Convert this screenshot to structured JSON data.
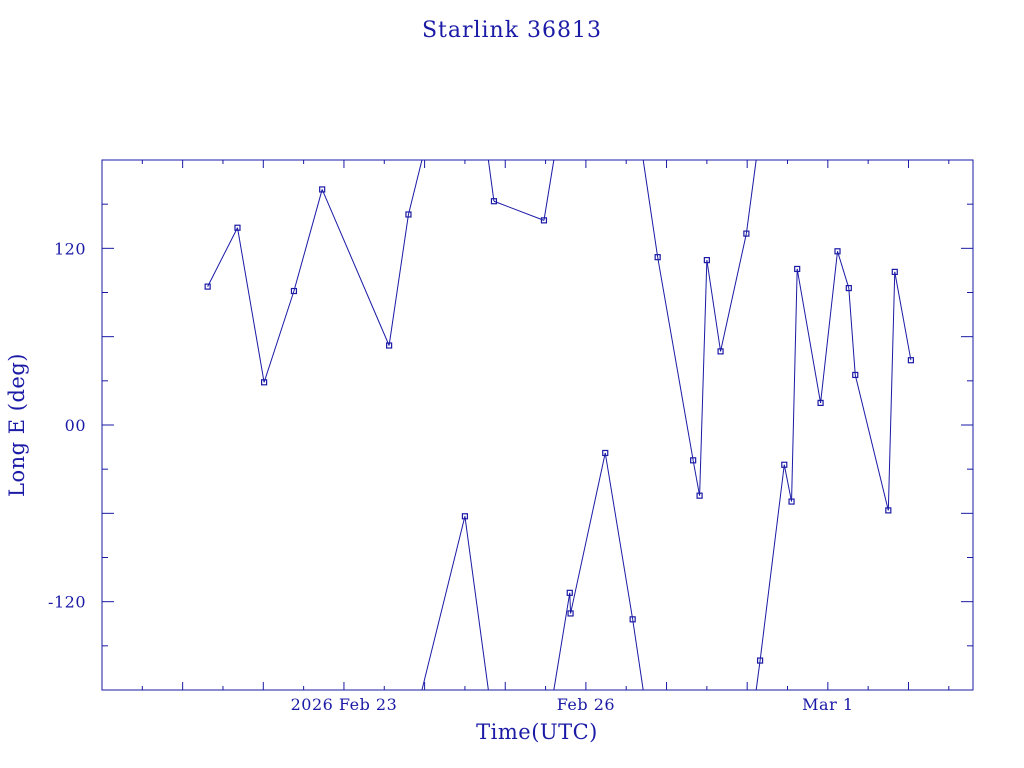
{
  "chart_data": {
    "type": "line",
    "title": "Starlink 36813",
    "xlabel": "Time(UTC)",
    "ylabel": "Long E (deg)",
    "x_ticks": [
      {
        "label": "2026 Feb 23",
        "value": 3
      },
      {
        "label": "Feb 26",
        "value": 6
      },
      {
        "label": "Mar  1",
        "value": 9
      }
    ],
    "y_ticks": [
      {
        "label": "-120",
        "value": -120
      },
      {
        "label": "00",
        "value": 0
      },
      {
        "label": "120",
        "value": 120
      }
    ],
    "xlim": [
      0,
      10.8
    ],
    "ylim": [
      -180,
      180
    ],
    "x_units": "days since 2026 Feb 20 00:00 UTC",
    "longitude_wraps_at": 180,
    "grid": false,
    "legend": "none",
    "series_color": "#1a1aa6",
    "points": [
      {
        "x": 1.31,
        "y": 94
      },
      {
        "x": 1.68,
        "y": 134
      },
      {
        "x": 2.01,
        "y": 29
      },
      {
        "x": 2.38,
        "y": 91
      },
      {
        "x": 2.73,
        "y": 160
      },
      {
        "x": 3.56,
        "y": 54
      },
      {
        "x": 3.8,
        "y": 143
      },
      {
        "x": 4.5,
        "y": -62
      },
      {
        "x": 4.86,
        "y": 152
      },
      {
        "x": 5.48,
        "y": 139
      },
      {
        "x": 5.8,
        "y": -114
      },
      {
        "x": 5.81,
        "y": -128
      },
      {
        "x": 6.24,
        "y": -19
      },
      {
        "x": 6.58,
        "y": -132
      },
      {
        "x": 6.89,
        "y": 114
      },
      {
        "x": 7.33,
        "y": -24
      },
      {
        "x": 7.41,
        "y": -48
      },
      {
        "x": 7.5,
        "y": 112
      },
      {
        "x": 7.67,
        "y": 50
      },
      {
        "x": 7.99,
        "y": 130
      },
      {
        "x": 8.16,
        "y": -160
      },
      {
        "x": 8.46,
        "y": -27
      },
      {
        "x": 8.55,
        "y": -52
      },
      {
        "x": 8.62,
        "y": 106
      },
      {
        "x": 8.91,
        "y": 15
      },
      {
        "x": 9.12,
        "y": 118
      },
      {
        "x": 9.26,
        "y": 93
      },
      {
        "x": 9.34,
        "y": 34
      },
      {
        "x": 9.75,
        "y": -58
      },
      {
        "x": 9.83,
        "y": 104
      },
      {
        "x": 10.03,
        "y": 44
      }
    ]
  }
}
